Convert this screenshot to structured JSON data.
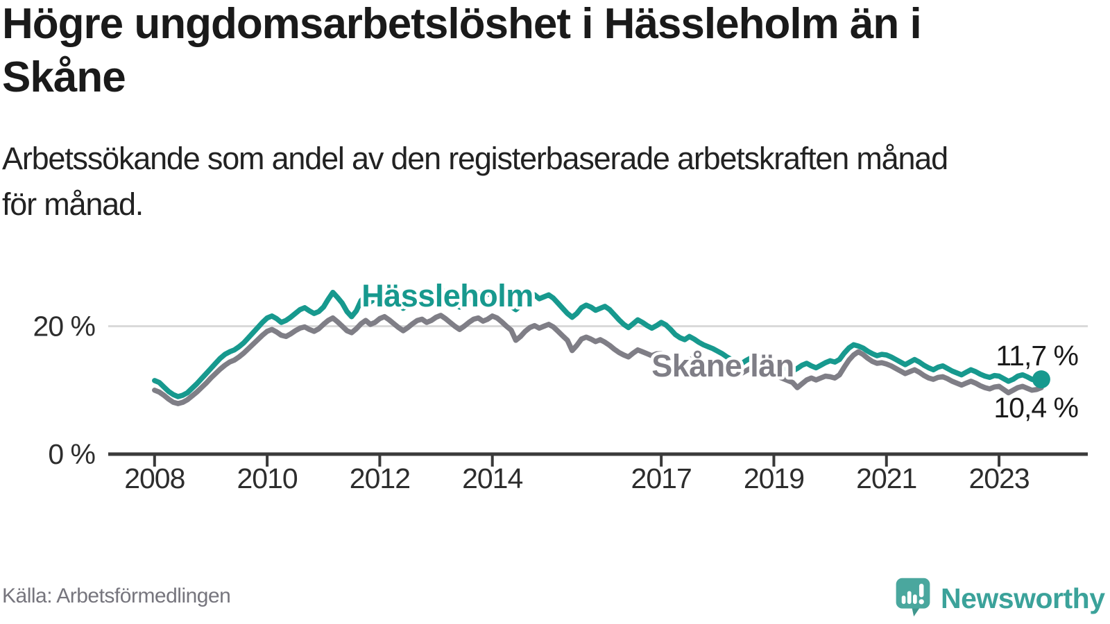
{
  "title_lines": [
    "Högre ungdomsarbetslöshet i Hässleholm än i",
    "Skåne"
  ],
  "subtitle_lines": [
    "Arbetssökande som andel av den registerbaserade arbetskraften månad",
    "för månad."
  ],
  "source_note": "Källa: Arbetsförmedlingen",
  "branding": {
    "name": "Newsworthy",
    "icon": "newsworthy-bubble-barchart-icon",
    "icon_color": "#4aa79e",
    "text_color": "#3ba29a"
  },
  "chart_data": {
    "type": "line",
    "unit": "%",
    "x_start": "2008-01",
    "x_end": "2023-10",
    "x_interval": "month",
    "xticks": [
      2008,
      2010,
      2012,
      2014,
      2017,
      2019,
      2021,
      2023
    ],
    "yticks": [
      {
        "value": 0,
        "label": "0 %"
      },
      {
        "value": 20,
        "label": "20 %"
      }
    ],
    "ylim": [
      0,
      28
    ],
    "grid": "horizontal-only",
    "legend": "inline-labels",
    "axis_color": "#3a3a3a",
    "grid_color": "#d9d9d9",
    "series": [
      {
        "name": "Hässleholm",
        "color": "#17998e",
        "end_label": "11,7 %",
        "end_value": 11.7,
        "has_end_dot": true,
        "values": [
          11.5,
          11.2,
          10.5,
          9.8,
          9.3,
          9.0,
          9.2,
          9.6,
          10.3,
          11.0,
          11.8,
          12.6,
          13.4,
          14.2,
          15.0,
          15.6,
          16.0,
          16.3,
          16.8,
          17.4,
          18.2,
          19.0,
          19.8,
          20.6,
          21.3,
          21.6,
          21.2,
          20.6,
          20.9,
          21.4,
          22.0,
          22.6,
          22.9,
          22.4,
          22.0,
          22.3,
          23.0,
          24.2,
          25.3,
          24.5,
          23.6,
          22.3,
          21.5,
          22.4,
          24.0,
          24.7,
          23.8,
          24.3,
          25.3,
          25.6,
          25.0,
          24.2,
          23.4,
          22.8,
          23.3,
          24.1,
          24.8,
          25.0,
          24.4,
          24.8,
          25.4,
          25.8,
          25.2,
          24.4,
          23.6,
          23.0,
          23.5,
          24.3,
          25.0,
          25.3,
          24.7,
          25.0,
          25.6,
          25.3,
          24.6,
          23.8,
          23.1,
          22.6,
          23.2,
          24.0,
          24.6,
          24.9,
          24.3,
          24.6,
          24.9,
          24.4,
          23.6,
          22.8,
          22.0,
          21.4,
          22.0,
          22.9,
          23.3,
          23.0,
          22.5,
          22.8,
          23.1,
          22.6,
          21.8,
          21.0,
          20.3,
          19.8,
          20.4,
          21.0,
          20.6,
          20.1,
          19.7,
          20.1,
          20.6,
          20.2,
          19.5,
          18.7,
          18.2,
          17.9,
          18.4,
          18.0,
          17.5,
          17.1,
          16.8,
          16.5,
          16.1,
          15.7,
          15.2,
          14.8,
          14.4,
          14.1,
          14.6,
          15.0,
          14.6,
          14.2,
          13.9,
          14.2,
          14.4,
          14.0,
          13.6,
          13.3,
          13.0,
          13.4,
          13.9,
          14.2,
          13.8,
          13.5,
          13.9,
          14.3,
          14.6,
          14.4,
          14.8,
          15.8,
          16.6,
          17.1,
          16.9,
          16.6,
          16.1,
          15.7,
          15.4,
          15.6,
          15.5,
          15.2,
          14.8,
          14.4,
          14.0,
          14.4,
          14.8,
          14.4,
          13.9,
          13.5,
          13.2,
          13.6,
          13.8,
          13.4,
          13.0,
          12.7,
          12.4,
          12.8,
          13.2,
          12.9,
          12.5,
          12.2,
          12.0,
          12.3,
          12.2,
          11.8,
          11.4,
          11.7,
          12.2,
          12.4,
          12.1,
          11.7,
          11.5,
          11.7
        ]
      },
      {
        "name": "Skåne län",
        "color": "#7f7e86",
        "end_label": "10,4 %",
        "end_value": 10.4,
        "has_end_dot": false,
        "values": [
          10.0,
          9.7,
          9.2,
          8.6,
          8.1,
          7.9,
          8.1,
          8.5,
          9.1,
          9.7,
          10.4,
          11.1,
          11.9,
          12.6,
          13.3,
          13.9,
          14.4,
          14.7,
          15.2,
          15.8,
          16.5,
          17.2,
          17.9,
          18.6,
          19.2,
          19.5,
          19.1,
          18.6,
          18.4,
          18.8,
          19.3,
          19.7,
          19.9,
          19.5,
          19.2,
          19.6,
          20.3,
          20.9,
          21.3,
          20.7,
          20.0,
          19.3,
          19.0,
          19.6,
          20.4,
          20.9,
          20.3,
          20.6,
          21.2,
          21.5,
          21.0,
          20.4,
          19.8,
          19.3,
          19.8,
          20.4,
          20.9,
          21.1,
          20.6,
          20.9,
          21.4,
          21.7,
          21.2,
          20.6,
          20.0,
          19.5,
          20.0,
          20.6,
          21.1,
          21.3,
          20.8,
          21.1,
          21.6,
          21.3,
          20.7,
          20.0,
          19.4,
          17.8,
          18.4,
          19.2,
          19.8,
          20.1,
          19.7,
          20.0,
          20.3,
          19.9,
          19.2,
          18.5,
          17.8,
          16.2,
          17.0,
          18.0,
          18.3,
          18.0,
          17.6,
          17.9,
          17.5,
          17.0,
          16.4,
          15.9,
          15.5,
          15.2,
          15.8,
          16.3,
          16.0,
          15.7,
          15.4,
          15.7,
          15.7,
          15.4,
          15.0,
          14.7,
          14.4,
          14.2,
          14.7,
          15.1,
          14.8,
          14.4,
          14.1,
          14.4,
          14.2,
          13.9,
          13.5,
          13.1,
          12.8,
          12.6,
          13.0,
          13.4,
          13.0,
          12.6,
          12.3,
          12.6,
          12.4,
          12.1,
          11.8,
          11.5,
          11.2,
          10.4,
          11.0,
          11.6,
          11.9,
          11.6,
          11.9,
          12.2,
          12.1,
          11.9,
          12.4,
          13.6,
          14.7,
          15.5,
          16.0,
          15.6,
          15.0,
          14.5,
          14.2,
          14.3,
          14.1,
          13.8,
          13.4,
          13.0,
          12.6,
          12.9,
          13.2,
          12.8,
          12.3,
          11.9,
          11.7,
          12.0,
          12.1,
          11.8,
          11.4,
          11.1,
          10.8,
          11.1,
          11.4,
          11.1,
          10.7,
          10.4,
          10.2,
          10.5,
          10.6,
          10.1,
          9.6,
          10.0,
          10.4,
          10.6,
          10.3,
          10.0,
          10.1,
          10.4
        ]
      }
    ]
  }
}
